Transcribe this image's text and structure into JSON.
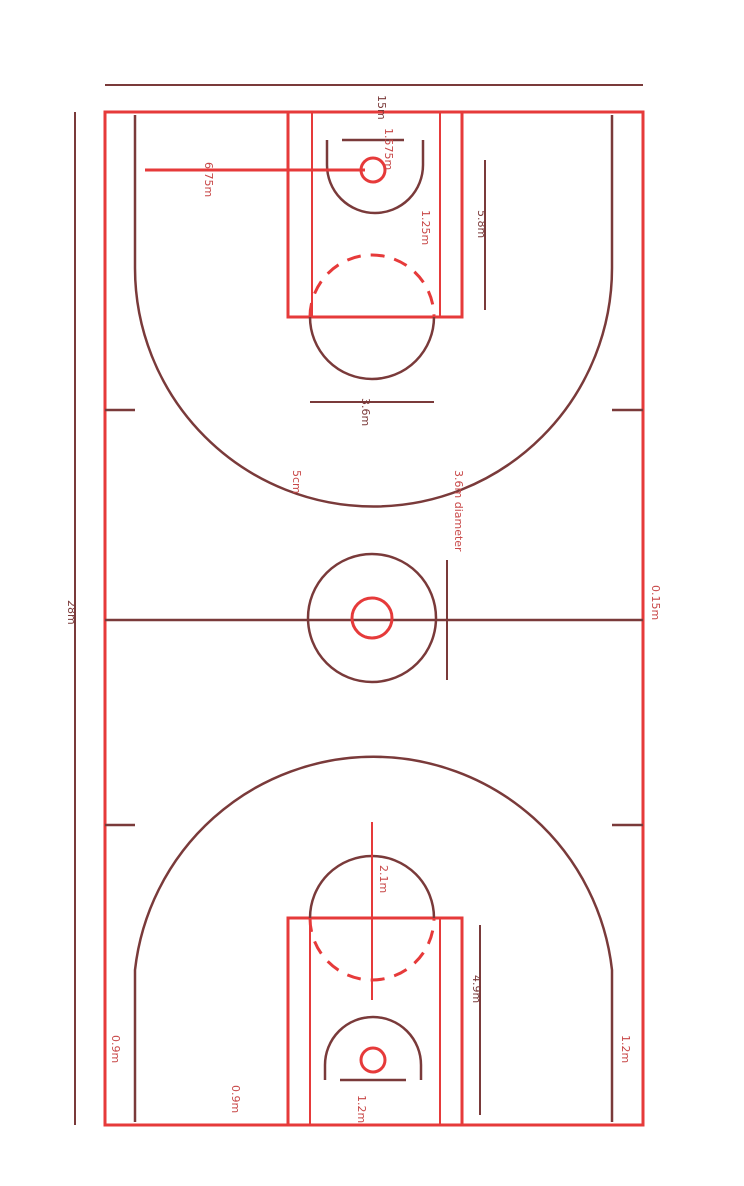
{
  "colors": {
    "court_line": "#e63a3a",
    "dimension_line": "#7a3a3a",
    "background": "#ffffff"
  },
  "dimensions": {
    "court_width": "15m",
    "court_length": "28m",
    "key_length": "5.8m",
    "key_width": "4.9m",
    "free_throw_circle": "3.6m",
    "three_point_radius": "6.75m",
    "corner_three": "0.9m",
    "center_circle": "3.6m diameter",
    "inner_circle": "1.2m",
    "hoop_offset": "1.575m",
    "restricted_area": "1.25m",
    "baseline_offset": "1.2m",
    "substitution_zone": "0.15m",
    "line_width": "5cm",
    "distance_0_9": "0.9m",
    "side_margin": "2.1m"
  }
}
